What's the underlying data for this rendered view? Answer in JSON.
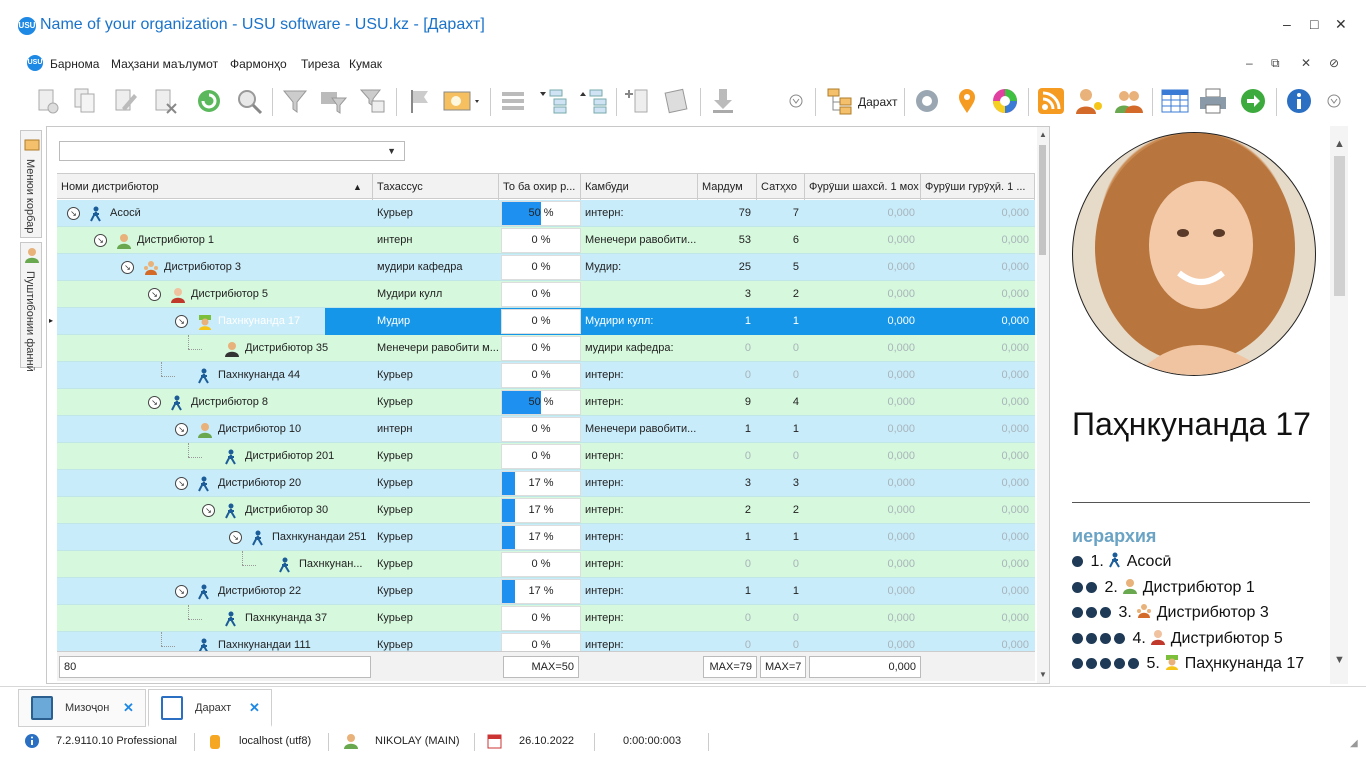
{
  "window": {
    "title": "Name of your organization - USU software - USU.kz - [Дарахт]",
    "logo_text": "USU",
    "minimize": "–",
    "maximize": "□",
    "close": "✕"
  },
  "menu": {
    "logo_text": "USU",
    "items": [
      "Барнома",
      "Маҳзани маълумот",
      "Фармонҳо",
      "Тиреза",
      "Кумак"
    ],
    "mdi": [
      "–",
      "⧉",
      "✕",
      "⊘"
    ]
  },
  "toolbar": {
    "tree_label": "Дарахт",
    "icons": [
      "add-icon",
      "copy-icon",
      "edit-icon",
      "delete-icon",
      "refresh-icon",
      "search-icon",
      "filter-icon",
      "filter-add-icon",
      "filter-check-icon",
      "flag-icon",
      "image-icon",
      "expand-rows-icon",
      "tree-expand-icon",
      "tree-collapse-icon",
      "add-column-icon",
      "notes-icon",
      "download-icon",
      "tree-icon",
      "settings-icon",
      "location-pin-icon",
      "color-wheel-icon",
      "rss-icon",
      "user-key-icon",
      "users-icon",
      "table-icon",
      "print-icon",
      "go-arrow-icon",
      "info-icon"
    ],
    "colors": {
      "accent": "#1e88e5",
      "orange": "#f59b22",
      "green": "#3caa3c"
    }
  },
  "left_rail": {
    "tab1": "Менюи корбар",
    "tab2": "Пуштибонии фаннӣ"
  },
  "grid": {
    "filter_value": "",
    "columns": [
      "Номи дистрибютор",
      "Тахассус",
      "То ба охир р...",
      "Камбуди",
      "Мардум",
      "Сатҳхо",
      "Фурӯши шахсӣ. 1 мох",
      "Фурӯши гурӯҳӣ. 1 ..."
    ],
    "rows": [
      {
        "name": "Асосӣ",
        "spec": "Курьер",
        "pct": 50,
        "pct_text": "50 %",
        "kambud": "интерн:",
        "mardum": "79",
        "sath": "7",
        "f1": "0,000",
        "f2": "0,000",
        "level": 0,
        "icon": "walker",
        "expand": true
      },
      {
        "name": "Дистрибютор 1",
        "spec": "интерн",
        "pct": 0,
        "pct_text": "0 %",
        "kambud": "Менечери равобити...",
        "mardum": "53",
        "sath": "6",
        "f1": "0,000",
        "f2": "0,000",
        "level": 1,
        "icon": "person-orange",
        "expand": true
      },
      {
        "name": "Дистрибютор 3",
        "spec": "мудири кафедра",
        "pct": 0,
        "pct_text": "0 %",
        "kambud": "Мудир:",
        "mardum": "25",
        "sath": "5",
        "f1": "0,000",
        "f2": "0,000",
        "level": 2,
        "icon": "person-team",
        "expand": true
      },
      {
        "name": "Дистрибютор 5",
        "spec": "Мудири кулл",
        "pct": 0,
        "pct_text": "0 %",
        "kambud": "",
        "mardum": "3",
        "sath": "2",
        "f1": "0,000",
        "f2": "0,000",
        "level": 3,
        "icon": "person-red",
        "expand": true
      },
      {
        "name": "Пахнкунанда 17",
        "spec": "Мудир",
        "pct": 0,
        "pct_text": "0 %",
        "kambud": "Мудири кулл:",
        "mardum": "1",
        "sath": "1",
        "f1": "0,000",
        "f2": "0,000",
        "level": 4,
        "icon": "person-green",
        "expand": true,
        "selected": true
      },
      {
        "name": "Дистрибютор 35",
        "spec": "Менечери равобити м...",
        "pct": 0,
        "pct_text": "0 %",
        "kambud": "мудири кафедра:",
        "mardum": "0",
        "sath": "0",
        "f1": "0,000",
        "f2": "0,000",
        "level": 5,
        "icon": "person-dark",
        "expand": false,
        "muted": true
      },
      {
        "name": "Пахнкунанда 44",
        "spec": "Курьер",
        "pct": 0,
        "pct_text": "0 %",
        "kambud": "интерн:",
        "mardum": "0",
        "sath": "0",
        "f1": "0,000",
        "f2": "0,000",
        "level": 4,
        "icon": "walker",
        "expand": false,
        "muted": true
      },
      {
        "name": "Дистрибютор 8",
        "spec": "Курьер",
        "pct": 50,
        "pct_text": "50 %",
        "kambud": "интерн:",
        "mardum": "9",
        "sath": "4",
        "f1": "0,000",
        "f2": "0,000",
        "level": 3,
        "icon": "walker",
        "expand": true
      },
      {
        "name": "Дистрибютор 10",
        "spec": "интерн",
        "pct": 0,
        "pct_text": "0 %",
        "kambud": "Менечери равобити...",
        "mardum": "1",
        "sath": "1",
        "f1": "0,000",
        "f2": "0,000",
        "level": 4,
        "icon": "person-orange",
        "expand": true
      },
      {
        "name": "Дистрибютор 201",
        "spec": "Курьер",
        "pct": 0,
        "pct_text": "0 %",
        "kambud": "интерн:",
        "mardum": "0",
        "sath": "0",
        "f1": "0,000",
        "f2": "0,000",
        "level": 5,
        "icon": "walker",
        "expand": false,
        "muted": true
      },
      {
        "name": "Дистрибютор 20",
        "spec": "Курьер",
        "pct": 17,
        "pct_text": "17 %",
        "kambud": "интерн:",
        "mardum": "3",
        "sath": "3",
        "f1": "0,000",
        "f2": "0,000",
        "level": 4,
        "icon": "walker",
        "expand": true
      },
      {
        "name": "Дистрибютор 30",
        "spec": "Курьер",
        "pct": 17,
        "pct_text": "17 %",
        "kambud": "интерн:",
        "mardum": "2",
        "sath": "2",
        "f1": "0,000",
        "f2": "0,000",
        "level": 5,
        "icon": "walker",
        "expand": true
      },
      {
        "name": "Пахнкунандаи 251",
        "spec": "Курьер",
        "pct": 17,
        "pct_text": "17 %",
        "kambud": "интерн:",
        "mardum": "1",
        "sath": "1",
        "f1": "0,000",
        "f2": "0,000",
        "level": 6,
        "icon": "walker",
        "expand": true
      },
      {
        "name": "Пахнкунан...",
        "spec": "Курьер",
        "pct": 0,
        "pct_text": "0 %",
        "kambud": "интерн:",
        "mardum": "0",
        "sath": "0",
        "f1": "0,000",
        "f2": "0,000",
        "level": 7,
        "icon": "walker",
        "expand": false,
        "muted": true
      },
      {
        "name": "Дистрибютор 22",
        "spec": "Курьер",
        "pct": 17,
        "pct_text": "17 %",
        "kambud": "интерн:",
        "mardum": "1",
        "sath": "1",
        "f1": "0,000",
        "f2": "0,000",
        "level": 4,
        "icon": "walker",
        "expand": true
      },
      {
        "name": "Пахнкунанда 37",
        "spec": "Курьер",
        "pct": 0,
        "pct_text": "0 %",
        "kambud": "интерн:",
        "mardum": "0",
        "sath": "0",
        "f1": "0,000",
        "f2": "0,000",
        "level": 5,
        "icon": "walker",
        "expand": false,
        "muted": true
      },
      {
        "name": "Пахнкунандаи 111",
        "spec": "Курьер",
        "pct": 0,
        "pct_text": "0 %",
        "kambud": "интерн:",
        "mardum": "0",
        "sath": "0",
        "f1": "0,000",
        "f2": "0,000",
        "level": 4,
        "icon": "walker",
        "expand": false,
        "muted": true
      }
    ],
    "footer": {
      "count": "80",
      "max_pct": "MAX=50",
      "max_mardum": "MAX=79",
      "max_sath": "MAX=7",
      "sum_f1": "0,000"
    }
  },
  "panel": {
    "name": "Паҳнкунанда 17",
    "hierarchy_title": "иерархия",
    "hierarchy": [
      {
        "dots": 1,
        "text": "1.",
        "label": "Асосӣ",
        "icon": "walker"
      },
      {
        "dots": 2,
        "text": "2.",
        "label": "Дистрибютор 1",
        "icon": "person-orange"
      },
      {
        "dots": 3,
        "text": "3.",
        "label": "Дистрибютор 3",
        "icon": "person-team"
      },
      {
        "dots": 4,
        "text": "4.",
        "label": "Дистрибютор 5",
        "icon": "person-red"
      },
      {
        "dots": 5,
        "text": "5.",
        "label": "Паҳнкунанда 17",
        "icon": "person-green"
      }
    ]
  },
  "tabs": [
    {
      "label": "Мизоҷон",
      "close": "✕"
    },
    {
      "label": "Дарахт",
      "close": "✕",
      "active": true
    }
  ],
  "status": {
    "version": "7.2.9110.10 Professional",
    "db": "localhost (utf8)",
    "user": "NIKOLAY (MAIN)",
    "date": "26.10.2022",
    "timer": "0:00:00:003"
  }
}
